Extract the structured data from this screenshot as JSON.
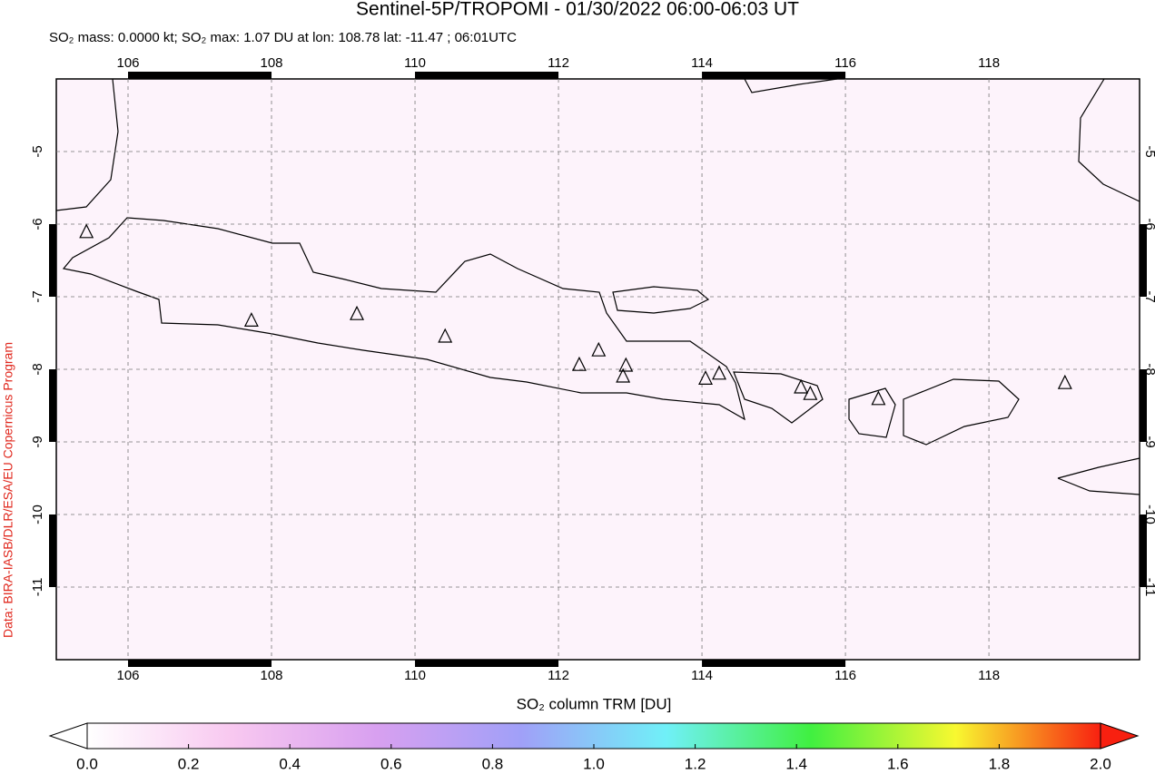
{
  "chart_data": {
    "type": "map",
    "title": "Sentinel-5P/TROPOMI - 01/30/2022 06:00-06:03 UT",
    "subtitle": "SO₂ mass: 0.0000 kt; SO₂ max: 1.07 DU at lon: 108.78 lat: -11.47 ; 06:01UTC",
    "credit": "Data: BIRA-IASB/DLR/ESA/EU Copernicus Program",
    "xlim": [
      105,
      120.1
    ],
    "ylim": [
      -12,
      -4
    ],
    "xticks": [
      106,
      108,
      110,
      112,
      114,
      116,
      118
    ],
    "yticks": [
      -11,
      -10,
      -9,
      -8,
      -7,
      -6,
      -5
    ],
    "grid": true,
    "volcanoes": {
      "color": "#000000",
      "x": [
        105.42,
        107.72,
        109.19,
        110.42,
        112.29,
        112.56,
        112.94,
        112.9,
        114.05,
        114.24,
        115.38,
        115.51,
        116.46,
        119.06
      ],
      "y": [
        -6.11,
        -7.33,
        -7.24,
        -7.55,
        -7.94,
        -7.74,
        -7.95,
        -8.1,
        -8.13,
        -8.06,
        -8.25,
        -8.34,
        -8.41,
        -8.19
      ]
    },
    "colorbar": {
      "label": "SO₂ column TRM [DU]",
      "lim": [
        0,
        2
      ],
      "colors": [
        "#ffffff",
        "#f8c8f0",
        "#d8a0f0",
        "#a0a0f8",
        "#70f0f8",
        "#40f040",
        "#f8f830",
        "#f82010"
      ],
      "ticks": [
        {
          "value": 0,
          "label": "0.0"
        },
        {
          "value": 0.2,
          "label": "0.2"
        },
        {
          "value": 0.4,
          "label": "0.4"
        },
        {
          "value": 0.6,
          "label": "0.6"
        },
        {
          "value": 0.8,
          "label": "0.8"
        },
        {
          "value": 1,
          "label": "1.0"
        },
        {
          "value": 1.2,
          "label": "1.2"
        },
        {
          "value": 1.4,
          "label": "1.4"
        },
        {
          "value": 1.6,
          "label": "1.6"
        },
        {
          "value": 1.8,
          "label": "1.8"
        },
        {
          "value": 2,
          "label": "2.0"
        }
      ]
    }
  }
}
